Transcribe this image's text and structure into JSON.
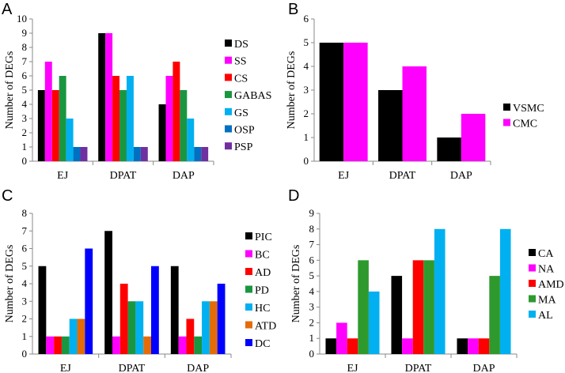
{
  "chart_data": [
    {
      "type": "bar",
      "panel_label": "A",
      "ylabel": "Number of DEGs",
      "ylim": [
        0,
        10
      ],
      "yticks": [
        "0",
        "1",
        "2",
        "3",
        "4",
        "5",
        "6",
        "7",
        "8",
        "9",
        "10"
      ],
      "categories": [
        "EJ",
        "DPAT",
        "DAP"
      ],
      "legend_position": "right",
      "series": [
        {
          "name": "DS",
          "color": "#000000",
          "values": [
            5,
            9,
            4
          ]
        },
        {
          "name": "SS",
          "color": "#ff00ff",
          "values": [
            7,
            9,
            6
          ]
        },
        {
          "name": "CS",
          "color": "#ff0000",
          "values": [
            5,
            6,
            7
          ]
        },
        {
          "name": "GABAS",
          "color": "#1a9641",
          "values": [
            6,
            5,
            5
          ]
        },
        {
          "name": "GS",
          "color": "#00b0f0",
          "values": [
            3,
            6,
            3
          ]
        },
        {
          "name": "OSP",
          "color": "#0070c0",
          "values": [
            1,
            1,
            1
          ]
        },
        {
          "name": "PSP",
          "color": "#7030a0",
          "values": [
            1,
            1,
            1
          ]
        }
      ]
    },
    {
      "type": "bar",
      "panel_label": "B",
      "ylabel": "Number of DEGs",
      "ylim": [
        0,
        6
      ],
      "yticks": [
        "0",
        "1",
        "2",
        "3",
        "4",
        "5",
        "6"
      ],
      "categories": [
        "EJ",
        "DPAT",
        "DAP"
      ],
      "legend_position": "right",
      "series": [
        {
          "name": "VSMC",
          "color": "#000000",
          "values": [
            5,
            3,
            1
          ]
        },
        {
          "name": "CMC",
          "color": "#ff00ff",
          "values": [
            5,
            4,
            2
          ]
        }
      ]
    },
    {
      "type": "bar",
      "panel_label": "C",
      "ylabel": "Number of DEGs",
      "ylim": [
        0,
        8
      ],
      "yticks": [
        "0",
        "1",
        "2",
        "3",
        "4",
        "5",
        "6",
        "7",
        "8"
      ],
      "categories": [
        "EJ",
        "DPAT",
        "DAP"
      ],
      "legend_position": "right",
      "series": [
        {
          "name": "PIC",
          "color": "#000000",
          "values": [
            5,
            7,
            5
          ]
        },
        {
          "name": "BC",
          "color": "#ff00ff",
          "values": [
            1,
            1,
            1
          ]
        },
        {
          "name": "AD",
          "color": "#ff0000",
          "values": [
            1,
            4,
            2
          ]
        },
        {
          "name": "PD",
          "color": "#1a9641",
          "values": [
            1,
            3,
            1
          ]
        },
        {
          "name": "HC",
          "color": "#00b0f0",
          "values": [
            2,
            3,
            3
          ]
        },
        {
          "name": "ATD",
          "color": "#e36c09",
          "values": [
            2,
            1,
            3
          ]
        },
        {
          "name": "DC",
          "color": "#0000ff",
          "values": [
            6,
            5,
            4
          ]
        }
      ]
    },
    {
      "type": "bar",
      "panel_label": "D",
      "ylabel": "Number of DEGs",
      "ylim": [
        0,
        9
      ],
      "yticks": [
        "0",
        "1",
        "2",
        "3",
        "4",
        "5",
        "6",
        "7",
        "8",
        "9"
      ],
      "categories": [
        "EJ",
        "DPAT",
        "DAP"
      ],
      "legend_position": "right",
      "series": [
        {
          "name": "CA",
          "color": "#000000",
          "values": [
            1,
            5,
            1
          ]
        },
        {
          "name": "NA",
          "color": "#ff00ff",
          "values": [
            2,
            1,
            1
          ]
        },
        {
          "name": "AMD",
          "color": "#ff0000",
          "values": [
            1,
            6,
            1
          ]
        },
        {
          "name": "MA",
          "color": "#2e9a2e",
          "values": [
            6,
            6,
            5
          ]
        },
        {
          "name": "AL",
          "color": "#00b0f0",
          "values": [
            4,
            8,
            8
          ]
        }
      ]
    }
  ]
}
